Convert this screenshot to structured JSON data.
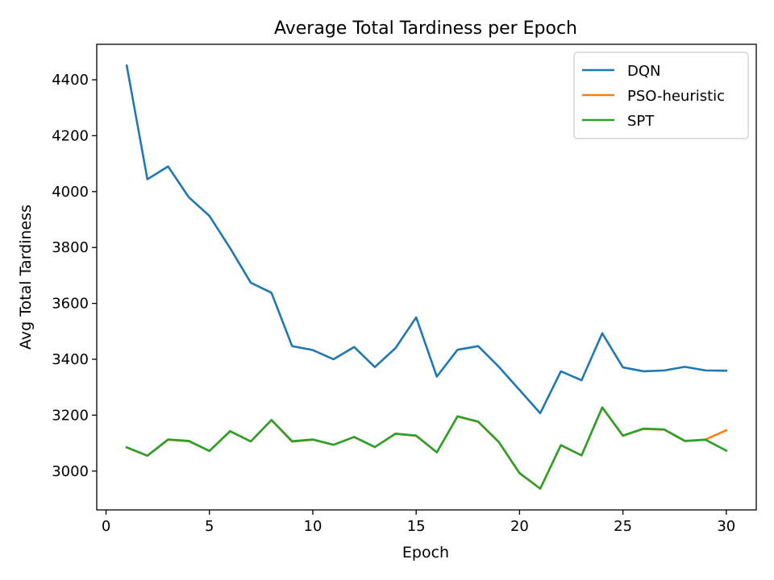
{
  "chart_data": {
    "type": "line",
    "title": "Average Total Tardiness per Epoch",
    "xlabel": "Epoch",
    "ylabel": "Avg Total Tardiness",
    "xlim": [
      -0.45,
      31.45
    ],
    "ylim": [
      2861,
      4527
    ],
    "xticks": [
      0,
      5,
      10,
      15,
      20,
      25,
      30
    ],
    "yticks": [
      3000,
      3200,
      3400,
      3600,
      3800,
      4000,
      4200,
      4400
    ],
    "grid": false,
    "legend_position": "top-right",
    "x": [
      1,
      2,
      3,
      4,
      5,
      6,
      7,
      8,
      9,
      10,
      11,
      12,
      13,
      14,
      15,
      16,
      17,
      18,
      19,
      20,
      21,
      22,
      23,
      24,
      25,
      26,
      27,
      28,
      29,
      30
    ],
    "series": [
      {
        "name": "DQN",
        "color": "#1f77b4",
        "values": [
          4451,
          4044,
          4090,
          3980,
          3913,
          3798,
          3674,
          3638,
          3447,
          3433,
          3400,
          3444,
          3372,
          3440,
          3550,
          3338,
          3434,
          3447,
          3373,
          3290,
          3207,
          3357,
          3325,
          3493,
          3371,
          3357,
          3360,
          3373,
          3360,
          3359
        ]
      },
      {
        "name": "PSO-heuristic",
        "color": "#ff7f0e",
        "values": [
          3084,
          3055,
          3112,
          3107,
          3072,
          3142,
          3106,
          3182,
          3105,
          3112,
          3094,
          3122,
          3086,
          3133,
          3126,
          3067,
          3195,
          3176,
          3103,
          2992,
          2937,
          3092,
          3056,
          3227,
          3126,
          3151,
          3148,
          3107,
          3113,
          3146
        ]
      },
      {
        "name": "SPT",
        "color": "#2ca02c",
        "values": [
          3085,
          3055,
          3113,
          3108,
          3072,
          3143,
          3106,
          3183,
          3107,
          3113,
          3094,
          3122,
          3086,
          3134,
          3127,
          3067,
          3196,
          3177,
          3104,
          2993,
          2937,
          3093,
          3056,
          3228,
          3127,
          3152,
          3149,
          3108,
          3112,
          3073
        ]
      }
    ]
  }
}
